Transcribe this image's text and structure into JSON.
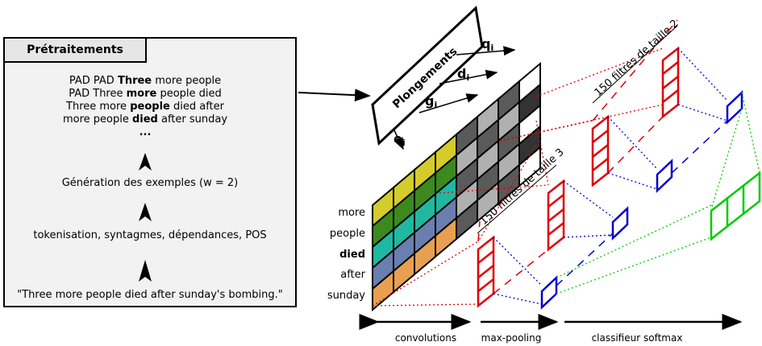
{
  "panel": {
    "title": "Prétraitements",
    "example_lines": [
      {
        "pre": "PAD PAD ",
        "bold": "Three",
        "post": " more people"
      },
      {
        "pre": "PAD Three ",
        "bold": "more",
        "post": " people died"
      },
      {
        "pre": "Three more ",
        "bold": "people",
        "post": " died after"
      },
      {
        "pre": "more people ",
        "bold": "died",
        "post": " after sunday"
      }
    ],
    "ellipsis": "...",
    "step_generation": "Génération des exemples (w = 2)",
    "step_tokenisation": "tokenisation, syntagmes, dépendances, POS",
    "input_sentence": "\"Three more people died after sunday's bombing.\""
  },
  "embedding_box": "Plongements",
  "embedding_labels": {
    "q": "q",
    "d": "d",
    "g": "g",
    "e": "e",
    "sub": "i"
  },
  "words": [
    "more",
    "people",
    "died",
    "after",
    "sunday"
  ],
  "bold_word": "died",
  "filter_labels": [
    "150 filtres de taille 3",
    "150 filtres de taille 2"
  ],
  "bottom_labels": [
    "convolutions",
    "max-pooling",
    "classifieur softmax"
  ],
  "colors": {
    "row_colors": [
      "#d4cc2a",
      "#3c8a1e",
      "#20b8a0",
      "#6a7fb0",
      "#e8a050"
    ],
    "filter_red": "#e00000",
    "pool_blue": "#0000cc",
    "softmax_green": "#00cc00"
  }
}
